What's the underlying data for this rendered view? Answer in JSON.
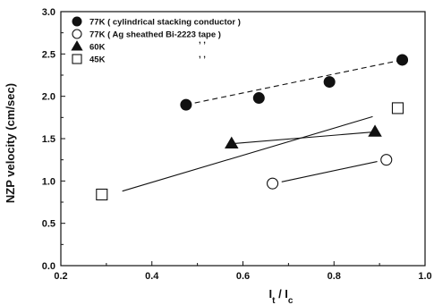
{
  "chart_data": {
    "type": "scatter",
    "title": "",
    "xlabel": "I_t / I_c",
    "ylabel": "NZP velocity (cm/sec)",
    "xlim": [
      0.2,
      1.0
    ],
    "ylim": [
      0.0,
      3.0
    ],
    "xticks": [
      "0.2",
      "0.4",
      "0.6",
      "0.8",
      "1.0"
    ],
    "yticks": [
      "0.0",
      "0.5",
      "1.0",
      "1.5",
      "2.0",
      "2.5",
      "3.0"
    ],
    "legend_position": "top-left",
    "series": [
      {
        "name": "77K ( cylindrical stacking conductor )",
        "marker": "filled-circle",
        "points": [
          [
            0.475,
            1.9
          ],
          [
            0.635,
            1.98
          ],
          [
            0.79,
            2.17
          ],
          [
            0.95,
            2.43
          ]
        ],
        "fit": {
          "style": "dashed",
          "from": [
            0.475,
            1.9
          ],
          "to": [
            0.95,
            2.43
          ]
        }
      },
      {
        "name": "77K ( Ag sheathed Bi-2223 tape )",
        "marker": "open-circle",
        "points": [
          [
            0.665,
            0.97
          ],
          [
            0.915,
            1.25
          ]
        ],
        "fit": {
          "style": "solid",
          "from": [
            0.685,
            0.99
          ],
          "to": [
            0.895,
            1.23
          ]
        }
      },
      {
        "name": "60K",
        "marker": "filled-triangle",
        "points": [
          [
            0.575,
            1.44
          ],
          [
            0.89,
            1.58
          ]
        ],
        "fit": {
          "style": "solid",
          "from": [
            0.575,
            1.44
          ],
          "to": [
            0.89,
            1.58
          ]
        }
      },
      {
        "name": "45K",
        "marker": "open-square",
        "points": [
          [
            0.29,
            0.84
          ],
          [
            0.94,
            1.86
          ]
        ],
        "fit": {
          "style": "solid",
          "from": [
            0.335,
            0.88
          ],
          "to": [
            0.885,
            1.76
          ]
        }
      }
    ],
    "annotations": [
      ", ,",
      ", ,"
    ]
  }
}
